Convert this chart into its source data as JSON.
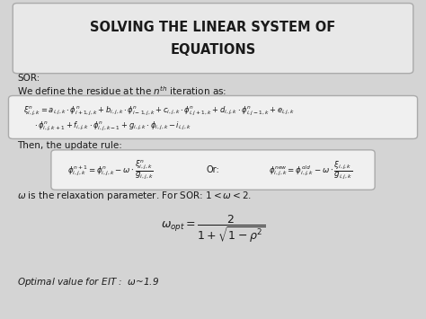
{
  "title_line1": "SOLVING THE LINEAR SYSTEM OF",
  "title_line2": "EQUATIONS",
  "bg_color": "#d4d4d4",
  "title_box_color": "#e8e8e8",
  "eq_box_color": "#f0f0f0",
  "text_color": "#1a1a1a",
  "sor_label": "SOR:",
  "residue_intro": "We define the residue at the $n^{th}$ iteration as:",
  "residue_eq_line1": "$\\xi^n_{i,j,k} = a_{i,j,k} \\cdot \\phi^n_{i+1,j,k} + b_{i,j,k} \\cdot \\phi^n_{i-1,j,k} + c_{i,j,k} \\cdot \\phi^n_{i,j+1,k} + d_{i,j,k} \\cdot \\phi^n_{i,j-1,k} + e_{i,j,k}$",
  "residue_eq_line2": "$\\cdot\\,\\phi^n_{i,j,k+1} + f_{i,j,k} \\cdot \\phi^n_{i,j,k-1} + g_{i,j,k} \\cdot \\phi_{i,j,k} - i_{i,j,k}$",
  "update_intro": "Then, the update rule:",
  "update_eq_left": "$\\phi^{n+1}_{i,j,k} = \\phi^n_{i,j,k} - \\omega \\cdot \\dfrac{\\xi^n_{i,j,k}}{g_{i,j,k}}$",
  "update_eq_right": "$\\phi^{new}_{i,j,k} = \\phi^{old}_{i,j,k} - \\omega \\cdot \\dfrac{\\xi_{i,j,k}}{g_{i,j,k}}$",
  "omega_text": "$\\omega$ is the relaxation parameter. For SOR: $1 < \\omega < 2.$",
  "omega_opt_eq": "$\\omega_{opt} = \\dfrac{2}{1 + \\sqrt{1 - \\rho^2}}$",
  "optimal_text": "Optimal value for EIT :  $\\omega$~1.9"
}
